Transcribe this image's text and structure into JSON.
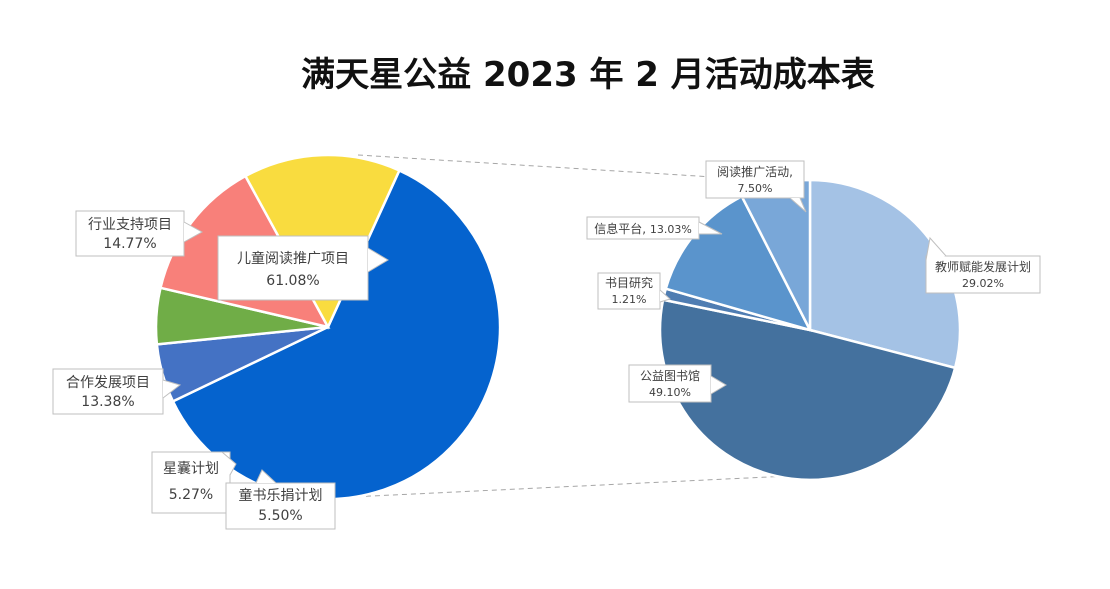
{
  "chart_data": [
    {
      "type": "pie",
      "title": "满天星公益 2023 年 2 月活动成本表",
      "slices": [
        {
          "name": "儿童阅读推广项目",
          "value": 61.08,
          "label": "61.08%",
          "color": "#0563CE"
        },
        {
          "name": "童书乐捐计划",
          "value": 5.5,
          "label": "5.50%",
          "color": "#4472C4"
        },
        {
          "name": "星囊计划",
          "value": 5.27,
          "label": "5.27%",
          "color": "#70AD47"
        },
        {
          "name": "合作发展项目",
          "value": 13.38,
          "label": "13.38%",
          "color": "#F8807A"
        },
        {
          "name": "行业支持项目",
          "value": 14.77,
          "label": "14.77%",
          "color": "#F9DC3F"
        }
      ]
    },
    {
      "type": "pie",
      "title": "",
      "slices": [
        {
          "name": "教师赋能发展计划",
          "value": 29.02,
          "label": "29.02%",
          "color": "#A4C2E5"
        },
        {
          "name": "公益图书馆",
          "value": 49.1,
          "label": "49.10%",
          "color": "#44719E"
        },
        {
          "name": "书目研究",
          "value": 1.21,
          "label": "1.21%",
          "color": "#4F7DB2"
        },
        {
          "name": "信息平台",
          "value": 13.03,
          "label": "13.03%",
          "color": "#5A94CC"
        },
        {
          "name": "阅读推广活动",
          "value": 7.5,
          "label": "7.50%",
          "color": "#79A7D8"
        }
      ]
    }
  ]
}
